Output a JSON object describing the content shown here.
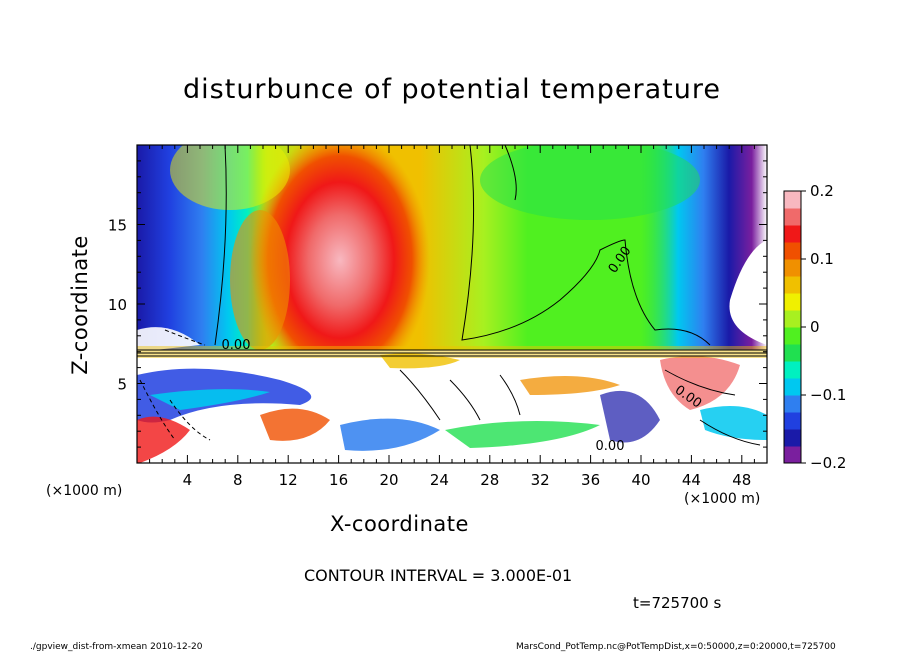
{
  "title": "disturbunce of potential temperature",
  "chart_data": {
    "type": "heatmap",
    "title": "disturbunce of potential temperature",
    "xlabel": "X-coordinate",
    "ylabel": "Z-coordinate",
    "x_unit_label": "(×1000 m)",
    "x_ticks": [
      4,
      8,
      12,
      16,
      20,
      24,
      28,
      32,
      36,
      40,
      44,
      48
    ],
    "x_tick_labels": [
      "4",
      "8",
      "12",
      "16",
      "20",
      "24",
      "28",
      "32",
      "36",
      "40",
      "44",
      "48"
    ],
    "y_ticks": [
      5,
      10,
      15
    ],
    "y_tick_labels": [
      "5",
      "10",
      "15"
    ],
    "xlim": [
      0,
      50
    ],
    "ylim": [
      0,
      20
    ],
    "colorbar": {
      "ticks": [
        -0.2,
        -0.1,
        0,
        0.1,
        0.2
      ],
      "tick_labels": [
        "−0.2",
        "−0.1",
        "0",
        "0.1",
        "0.2"
      ],
      "range": [
        -0.2,
        0.2
      ],
      "colors": [
        "#7a1f9e",
        "#1a1aa8",
        "#2040e0",
        "#2f7ff0",
        "#00c8f0",
        "#00f0c0",
        "#20e050",
        "#50f020",
        "#a8f020",
        "#f0f000",
        "#f0c000",
        "#f09000",
        "#f05000",
        "#f01818",
        "#f06a6a",
        "#f8b8c0"
      ]
    },
    "contour_labels": [
      "0.00",
      "0.00",
      "0.00",
      "0.00"
    ],
    "contour_interval": "CONTOUR INTERVAL = 3.000E-01",
    "time": "t=725700 s"
  },
  "footer": {
    "left": "./gpview_dist-from-xmean  2010-12-20",
    "right": "MarsCond_PotTemp.nc@PotTempDist,x=0:50000,z=0:20000,t=725700"
  }
}
